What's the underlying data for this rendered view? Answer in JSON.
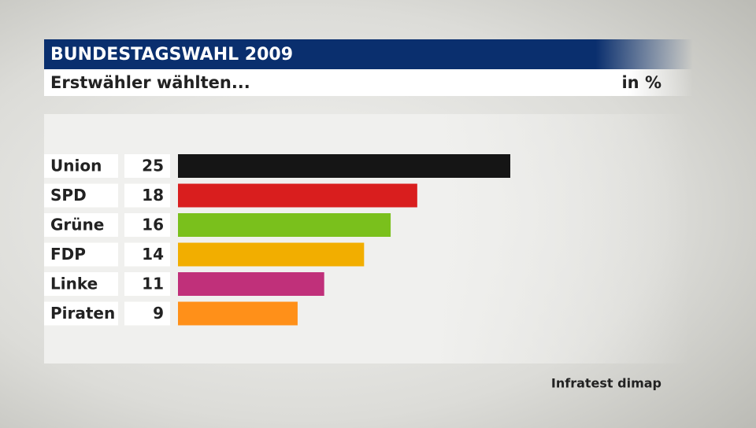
{
  "chart_data": {
    "type": "bar",
    "orientation": "horizontal",
    "title": "BUNDESTAGSWAHL 2009",
    "subtitle": "Erstwähler wählten...",
    "unit": "in %",
    "source": "Infratest dimap",
    "categories": [
      "Union",
      "SPD",
      "Grüne",
      "FDP",
      "Linke",
      "Piraten"
    ],
    "values": [
      25,
      18,
      16,
      14,
      11,
      9
    ],
    "colors": [
      "#151515",
      "#d91e1e",
      "#7ac01c",
      "#f2ae00",
      "#c0307a",
      "#ff9019"
    ]
  }
}
